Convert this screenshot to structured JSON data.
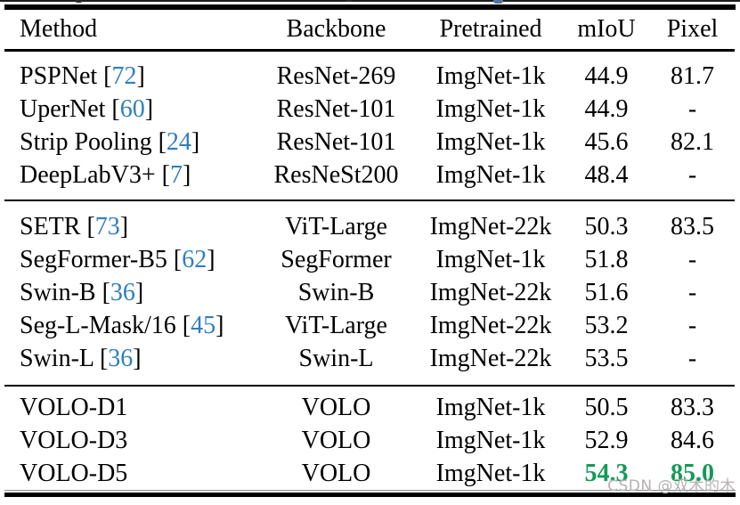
{
  "colors": {
    "cite_blue": "#2e7fc1",
    "highlight_green": "#149a58",
    "rule_black": "#000000",
    "watermark_gray": "#b6b0b3"
  },
  "watermark": {
    "text": "CSDN @双木的木"
  },
  "table": {
    "columns": [
      "Method",
      "Backbone",
      "Pretrained",
      "mIoU",
      "Pixel"
    ],
    "cite_open": "[",
    "cite_close": "]",
    "groups": [
      {
        "rows": [
          {
            "method": "PSPNet",
            "cite": "72",
            "backbone": "ResNet-269",
            "pretrained": "ImgNet-1k",
            "miou": "44.9",
            "pixel": "81.7"
          },
          {
            "method": "UperNet",
            "cite": "60",
            "backbone": "ResNet-101",
            "pretrained": "ImgNet-1k",
            "miou": "44.9",
            "pixel": "-"
          },
          {
            "method": "Strip Pooling",
            "cite": "24",
            "backbone": "ResNet-101",
            "pretrained": "ImgNet-1k",
            "miou": "45.6",
            "pixel": "82.1"
          },
          {
            "method": "DeepLabV3+",
            "cite": "7",
            "backbone": "ResNeSt200",
            "pretrained": "ImgNet-1k",
            "miou": "48.4",
            "pixel": "-"
          }
        ]
      },
      {
        "rows": [
          {
            "method": "SETR",
            "cite": "73",
            "backbone": "ViT-Large",
            "pretrained": "ImgNet-22k",
            "miou": "50.3",
            "pixel": "83.5"
          },
          {
            "method": "SegFormer-B5",
            "cite": "62",
            "backbone": "SegFormer",
            "pretrained": "ImgNet-1k",
            "miou": "51.8",
            "pixel": "-"
          },
          {
            "method": "Swin-B",
            "cite": "36",
            "backbone": "Swin-B",
            "pretrained": "ImgNet-22k",
            "miou": "51.6",
            "pixel": "-"
          },
          {
            "method": "Seg-L-Mask/16",
            "cite": "45",
            "backbone": "ViT-Large",
            "pretrained": "ImgNet-22k",
            "miou": "53.2",
            "pixel": "-"
          },
          {
            "method": "Swin-L",
            "cite": "36",
            "backbone": "Swin-L",
            "pretrained": "ImgNet-22k",
            "miou": "53.5",
            "pixel": "-"
          }
        ]
      },
      {
        "rows": [
          {
            "method": "VOLO-D1",
            "cite": null,
            "backbone": "VOLO",
            "pretrained": "ImgNet-1k",
            "miou": "50.5",
            "pixel": "83.3"
          },
          {
            "method": "VOLO-D3",
            "cite": null,
            "backbone": "VOLO",
            "pretrained": "ImgNet-1k",
            "miou": "52.9",
            "pixel": "84.6"
          },
          {
            "method": "VOLO-D5",
            "cite": null,
            "backbone": "VOLO",
            "pretrained": "ImgNet-1k",
            "miou": "54.3",
            "pixel": "85.0",
            "highlight": true
          }
        ]
      }
    ]
  }
}
